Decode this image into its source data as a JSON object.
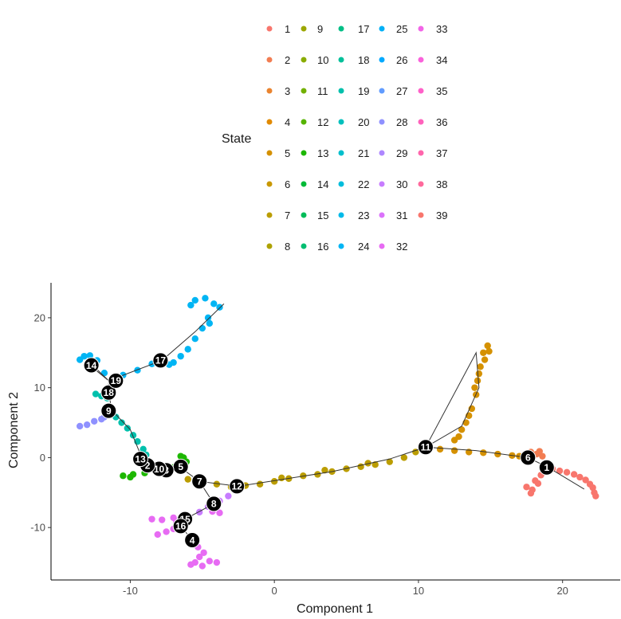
{
  "chart_data": {
    "type": "scatter",
    "xlabel": "Component 1",
    "ylabel": "Component 2",
    "xlim": [
      -15.5,
      24
    ],
    "ylim": [
      -17.5,
      25
    ],
    "xticks": [
      -10,
      0,
      10,
      20
    ],
    "yticks": [
      -10,
      0,
      10,
      20
    ],
    "grid": false,
    "legend": {
      "title": "State",
      "placement": "top",
      "columns": 5,
      "entries": [
        {
          "label": "1",
          "color": "#F8766D"
        },
        {
          "label": "2",
          "color": "#F27D52"
        },
        {
          "label": "3",
          "color": "#EA842F"
        },
        {
          "label": "4",
          "color": "#E18A00"
        },
        {
          "label": "5",
          "color": "#D59100"
        },
        {
          "label": "6",
          "color": "#C99800"
        },
        {
          "label": "7",
          "color": "#BB9D00"
        },
        {
          "label": "8",
          "color": "#AEA200"
        },
        {
          "label": "9",
          "color": "#9CA700"
        },
        {
          "label": "10",
          "color": "#89AC00"
        },
        {
          "label": "11",
          "color": "#72B000"
        },
        {
          "label": "12",
          "color": "#56B400"
        },
        {
          "label": "13",
          "color": "#1DB700"
        },
        {
          "label": "14",
          "color": "#00BA38"
        },
        {
          "label": "15",
          "color": "#00BC59"
        },
        {
          "label": "16",
          "color": "#00BE71"
        },
        {
          "label": "17",
          "color": "#00BF86"
        },
        {
          "label": "18",
          "color": "#00C09A"
        },
        {
          "label": "19",
          "color": "#00C0AC"
        },
        {
          "label": "20",
          "color": "#00C0BD"
        },
        {
          "label": "21",
          "color": "#00BFCD"
        },
        {
          "label": "22",
          "color": "#00BDDC"
        },
        {
          "label": "23",
          "color": "#00BAE9"
        },
        {
          "label": "24",
          "color": "#00B5F4"
        },
        {
          "label": "25",
          "color": "#00B0F6"
        },
        {
          "label": "26",
          "color": "#00A9FF"
        },
        {
          "label": "27",
          "color": "#619CFF"
        },
        {
          "label": "28",
          "color": "#8F91FF"
        },
        {
          "label": "29",
          "color": "#AE87FF"
        },
        {
          "label": "30",
          "color": "#C77CFF"
        },
        {
          "label": "31",
          "color": "#DB72FB"
        },
        {
          "label": "32",
          "color": "#E76BF3"
        },
        {
          "label": "33",
          "color": "#F265E7"
        },
        {
          "label": "34",
          "color": "#FA62DB"
        },
        {
          "label": "35",
          "color": "#FF61C9"
        },
        {
          "label": "36",
          "color": "#FF62BC"
        },
        {
          "label": "37",
          "color": "#FF65AC"
        },
        {
          "label": "38",
          "color": "#FF699C"
        },
        {
          "label": "39",
          "color": "#F8766D"
        }
      ]
    },
    "trajectory": [
      [
        -12.5,
        13
      ],
      [
        -11.5,
        11
      ],
      [
        -11.5,
        9.5
      ],
      [
        -11.3,
        6.8
      ],
      [
        -10,
        4
      ],
      [
        -9.2,
        0
      ],
      [
        -8.5,
        -1.2
      ],
      [
        -7.8,
        -1.7
      ],
      [
        -6.6,
        -1.3
      ],
      [
        -5.2,
        -3.4
      ],
      [
        -2.5,
        -4.1
      ],
      [
        0,
        -3.3
      ],
      [
        4,
        -2
      ],
      [
        8,
        -0.2
      ],
      [
        10.5,
        1.5
      ],
      [
        13,
        4.5
      ],
      [
        14.2,
        10
      ],
      [
        14,
        15
      ],
      [
        10.5,
        1.5
      ],
      [
        14,
        1
      ],
      [
        17.6,
        0
      ],
      [
        19,
        -1.4
      ],
      [
        21.5,
        -4.5
      ]
    ],
    "branches": [
      [
        [
          -12.8,
          13.2
        ],
        [
          -11.5,
          11
        ],
        [
          -7.8,
          13.9
        ],
        [
          -5.5,
          18
        ],
        [
          -3.5,
          22
        ]
      ],
      [
        [
          -5.2,
          -3.4
        ],
        [
          -4.2,
          -6.6
        ],
        [
          -6.2,
          -8.8
        ],
        [
          -6.5,
          -9.8
        ],
        [
          -5.7,
          -11.8
        ]
      ]
    ],
    "clusters": [
      {
        "state": "1",
        "color": "#F8766D",
        "points": [
          [
            19.3,
            -1.6
          ],
          [
            19.8,
            -1.9
          ],
          [
            20.3,
            -2.1
          ],
          [
            20.8,
            -2.4
          ],
          [
            21.2,
            -2.8
          ],
          [
            21.6,
            -3.2
          ],
          [
            21.9,
            -3.8
          ],
          [
            22.1,
            -4.3
          ],
          [
            22.2,
            -5
          ],
          [
            22.3,
            -5.5
          ],
          [
            17.5,
            -4.2
          ],
          [
            17.9,
            -4.6
          ],
          [
            18.3,
            -3.7
          ],
          [
            17.8,
            -5.1
          ],
          [
            18.5,
            -2.5
          ],
          [
            18.1,
            -3.3
          ]
        ]
      },
      {
        "state": "6",
        "color": "#F27D52",
        "points": [
          [
            17.8,
            0.8
          ],
          [
            18.2,
            0.5
          ],
          [
            18.6,
            0.2
          ],
          [
            18.4,
            0.9
          ],
          [
            17.6,
            0.4
          ]
        ]
      },
      {
        "state": "4",
        "color": "#D59100",
        "points": [
          [
            11.5,
            1.2
          ],
          [
            12.5,
            1
          ],
          [
            13.5,
            0.8
          ],
          [
            14.5,
            0.7
          ],
          [
            15.5,
            0.5
          ],
          [
            16.5,
            0.3
          ],
          [
            17,
            0.2
          ],
          [
            12.8,
            3
          ],
          [
            13.3,
            5
          ],
          [
            13.7,
            7
          ],
          [
            14,
            9
          ],
          [
            14.1,
            11
          ],
          [
            14.3,
            13
          ],
          [
            14.5,
            15
          ],
          [
            14.9,
            15.2
          ],
          [
            13.5,
            6
          ],
          [
            14.2,
            12
          ],
          [
            13.9,
            10
          ],
          [
            14.6,
            14
          ],
          [
            12.5,
            2.5
          ],
          [
            13,
            4
          ],
          [
            14.8,
            16
          ]
        ]
      },
      {
        "state": "7",
        "color": "#BB9D00",
        "points": [
          [
            -2,
            -4
          ],
          [
            -1,
            -3.8
          ],
          [
            0,
            -3.4
          ],
          [
            1,
            -3
          ],
          [
            2,
            -2.6
          ],
          [
            3,
            -2.4
          ],
          [
            4,
            -2
          ],
          [
            5,
            -1.6
          ],
          [
            6,
            -1.3
          ],
          [
            7,
            -1
          ],
          [
            8,
            -0.6
          ],
          [
            9,
            0
          ],
          [
            9.8,
            0.8
          ],
          [
            -4,
            -3.8
          ],
          [
            -5,
            -3.5
          ],
          [
            -6,
            -3.1
          ],
          [
            6.5,
            -0.8
          ],
          [
            3.5,
            -1.8
          ],
          [
            0.5,
            -2.9
          ],
          [
            -3,
            -4.2
          ]
        ]
      },
      {
        "state": "13",
        "color": "#1DB700",
        "points": [
          [
            -10.5,
            -2.6
          ],
          [
            -9.8,
            -2.4
          ],
          [
            -9,
            -2.2
          ],
          [
            -8.2,
            -2
          ],
          [
            -7.5,
            -1.8
          ],
          [
            -7,
            -1.4
          ],
          [
            -6.3,
            0
          ],
          [
            -6.1,
            -0.6
          ],
          [
            -6.5,
            0.2
          ],
          [
            -10,
            -2.8
          ]
        ]
      },
      {
        "state": "19",
        "color": "#00C0AC",
        "points": [
          [
            -11,
            5.8
          ],
          [
            -10.6,
            5
          ],
          [
            -10.2,
            4.2
          ],
          [
            -9.8,
            3.2
          ],
          [
            -9.5,
            2.3
          ],
          [
            -9.1,
            1.2
          ],
          [
            -8.9,
            0.4
          ],
          [
            -8.7,
            -0.5
          ],
          [
            -12.4,
            9.1
          ],
          [
            -12,
            8.8
          ],
          [
            -11.6,
            8.5
          ]
        ]
      },
      {
        "state": "24",
        "color": "#00B5F4",
        "points": [
          [
            -13.2,
            14.5
          ],
          [
            -13.5,
            14
          ],
          [
            -12.8,
            14.6
          ],
          [
            -12.3,
            13.9
          ],
          [
            -11.8,
            12.1
          ],
          [
            -11.2,
            11.4
          ],
          [
            -10.5,
            11.8
          ],
          [
            -9.5,
            12.5
          ],
          [
            -8.5,
            13.4
          ],
          [
            -7,
            13.6
          ],
          [
            -6.5,
            14.5
          ],
          [
            -6,
            15.5
          ],
          [
            -5.5,
            17
          ],
          [
            -5,
            18.5
          ],
          [
            -4.6,
            20
          ],
          [
            -5.5,
            22.5
          ],
          [
            -4.8,
            22.8
          ],
          [
            -4.2,
            22
          ],
          [
            -3.8,
            21.5
          ],
          [
            -5.8,
            21.8
          ],
          [
            -4.5,
            19.2
          ],
          [
            -7.3,
            13.3
          ]
        ]
      },
      {
        "state": "28",
        "color": "#8F91FF",
        "points": [
          [
            -13.5,
            4.5
          ],
          [
            -13,
            4.7
          ],
          [
            -12.5,
            5.2
          ],
          [
            -12,
            5.5
          ],
          [
            -11.8,
            5.8
          ]
        ]
      },
      {
        "state": "30",
        "color": "#C77CFF",
        "points": [
          [
            -3.2,
            -5.5
          ],
          [
            -3.8,
            -6.2
          ],
          [
            -4.6,
            -7
          ],
          [
            -5.2,
            -7.8
          ],
          [
            -5.9,
            -8.5
          ],
          [
            -6.3,
            -9.2
          ]
        ]
      },
      {
        "state": "32",
        "color": "#E76BF3",
        "points": [
          [
            -8.5,
            -8.8
          ],
          [
            -7.8,
            -8.9
          ],
          [
            -7,
            -8.6
          ],
          [
            -6.8,
            -9.2
          ],
          [
            -8.1,
            -11
          ],
          [
            -7.5,
            -10.6
          ],
          [
            -7,
            -10.2
          ],
          [
            -4.3,
            -7.7
          ],
          [
            -3.8,
            -7.9
          ],
          [
            -5.2,
            -14.2
          ],
          [
            -5.5,
            -15
          ],
          [
            -5,
            -15.5
          ],
          [
            -4.5,
            -14.8
          ],
          [
            -5.8,
            -15.3
          ],
          [
            -4.9,
            -13.6
          ],
          [
            -5.3,
            -12.8
          ],
          [
            -4,
            -15
          ]
        ]
      }
    ],
    "branch_points": [
      {
        "label": "1",
        "x": 18.9,
        "y": -1.4
      },
      {
        "label": "6",
        "x": 17.6,
        "y": 0
      },
      {
        "label": "11",
        "x": 10.5,
        "y": 1.5
      },
      {
        "label": "12",
        "x": -2.6,
        "y": -4.1
      },
      {
        "label": "7",
        "x": -5.2,
        "y": -3.4
      },
      {
        "label": "5",
        "x": -6.5,
        "y": -1.3
      },
      {
        "label": "3",
        "x": -7.5,
        "y": -1.8
      },
      {
        "label": "10",
        "x": -8,
        "y": -1.6
      },
      {
        "label": "2",
        "x": -8.8,
        "y": -1.1
      },
      {
        "label": "13",
        "x": -9.3,
        "y": -0.2
      },
      {
        "label": "9",
        "x": -11.5,
        "y": 6.7
      },
      {
        "label": "18",
        "x": -11.5,
        "y": 9.3
      },
      {
        "label": "19",
        "x": -11,
        "y": 11
      },
      {
        "label": "14",
        "x": -12.7,
        "y": 13.2
      },
      {
        "label": "17",
        "x": -7.9,
        "y": 13.9
      },
      {
        "label": "8",
        "x": -4.2,
        "y": -6.6
      },
      {
        "label": "15",
        "x": -6.2,
        "y": -8.8
      },
      {
        "label": "16",
        "x": -6.5,
        "y": -9.8
      },
      {
        "label": "4",
        "x": -5.7,
        "y": -11.8
      }
    ]
  }
}
